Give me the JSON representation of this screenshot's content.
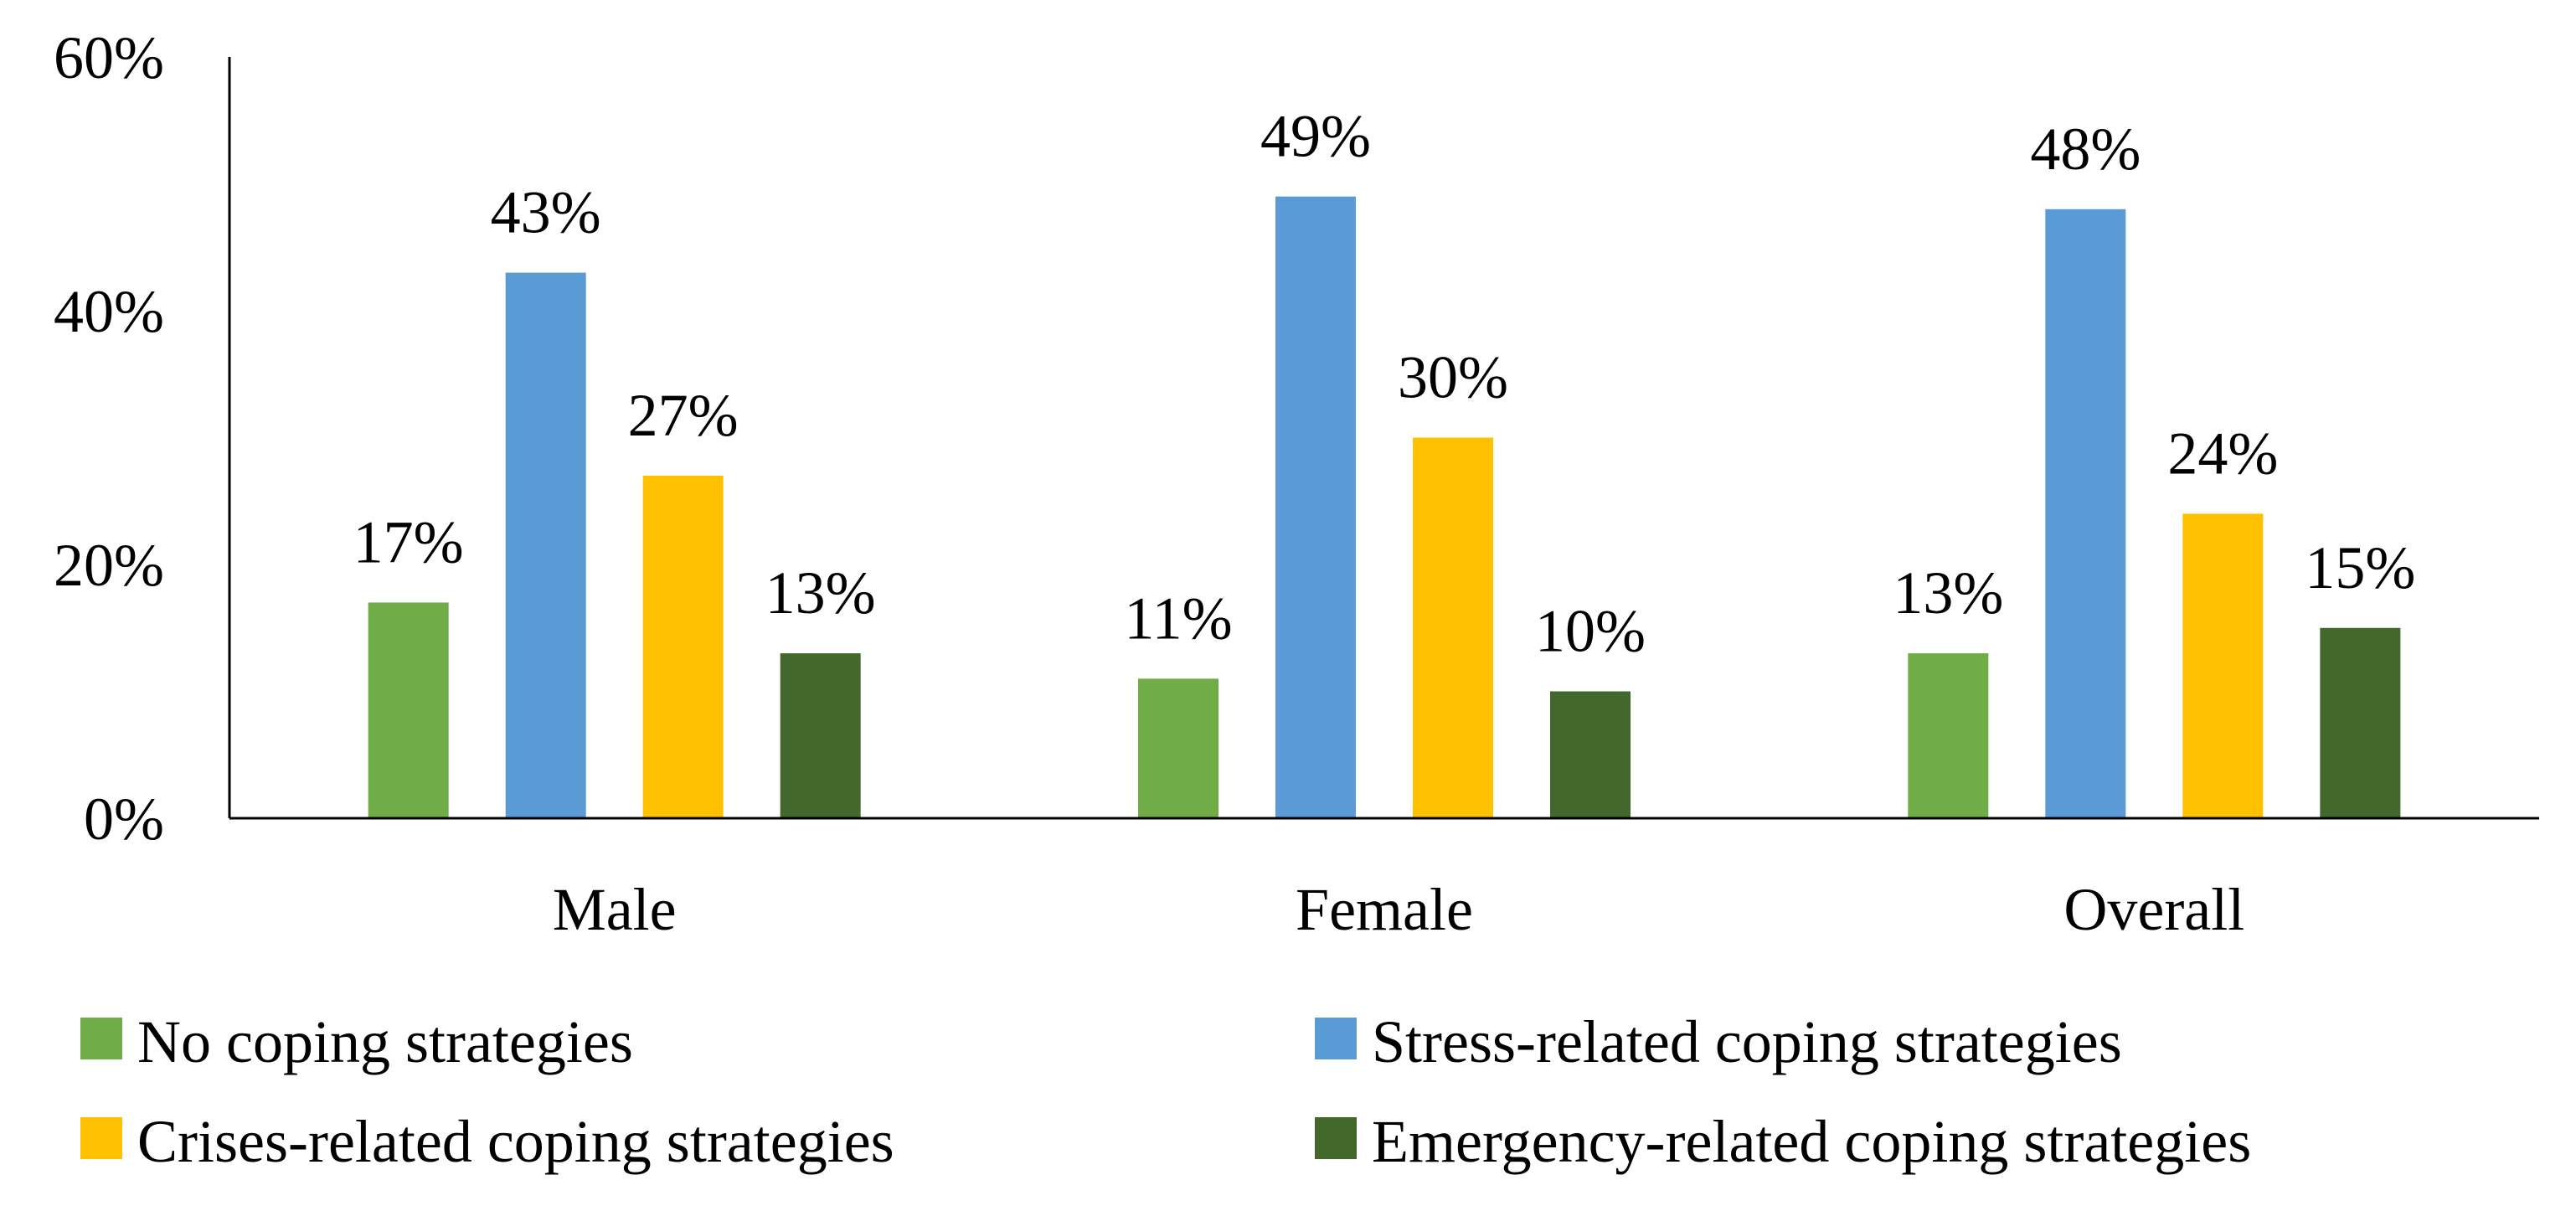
{
  "chart_data": {
    "type": "bar",
    "title": "",
    "xlabel": "",
    "ylabel": "",
    "ylim": [
      0,
      60
    ],
    "yticks": [
      0,
      20,
      40,
      60
    ],
    "ytick_labels": [
      "0%",
      "20%",
      "40%",
      "60%"
    ],
    "grid": false,
    "legend_position": "bottom",
    "categories": [
      "Male",
      "Female",
      "Overall"
    ],
    "series": [
      {
        "name": "No coping strategies",
        "color": "#70AD47",
        "values": [
          17,
          11,
          13
        ],
        "labels": [
          "17%",
          "11%",
          "13%"
        ]
      },
      {
        "name": "Stress-related coping strategies",
        "color": "#5B9BD5",
        "values": [
          43,
          49,
          48
        ],
        "labels": [
          "43%",
          "49%",
          "48%"
        ]
      },
      {
        "name": "Crises-related coping strategies",
        "color": "#FFC000",
        "values": [
          27,
          30,
          24
        ],
        "labels": [
          "27%",
          "30%",
          "24%"
        ]
      },
      {
        "name": "Emergency-related coping strategies",
        "color": "#43682B",
        "values": [
          13,
          10,
          15
        ],
        "labels": [
          "13%",
          "10%",
          "15%"
        ]
      }
    ]
  }
}
